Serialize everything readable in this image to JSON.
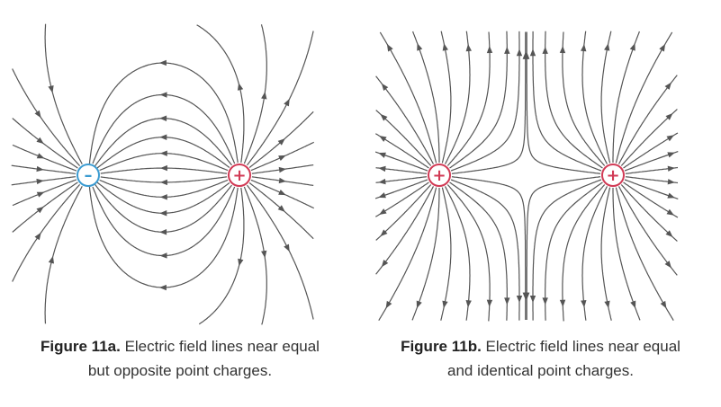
{
  "figures": [
    {
      "id": "a",
      "charges": [
        {
          "sign": "negative",
          "symbol": "–",
          "color": "#3b9bd1"
        },
        {
          "sign": "positive",
          "symbol": "+",
          "color": "#d13a55"
        }
      ],
      "caption": {
        "label": "Figure 11a.",
        "text_line1": " Electric field lines near equal",
        "text_line2": "but opposite point charges."
      }
    },
    {
      "id": "b",
      "charges": [
        {
          "sign": "positive",
          "symbol": "+",
          "color": "#d13a55"
        },
        {
          "sign": "positive",
          "symbol": "+",
          "color": "#d13a55"
        }
      ],
      "caption": {
        "label": "Figure 11b.",
        "text_line1": " Electric field lines near equal",
        "text_line2": "and identical point charges."
      }
    }
  ],
  "colors": {
    "line": "#555555",
    "negative": "#3b9bd1",
    "positive": "#d13a55"
  }
}
